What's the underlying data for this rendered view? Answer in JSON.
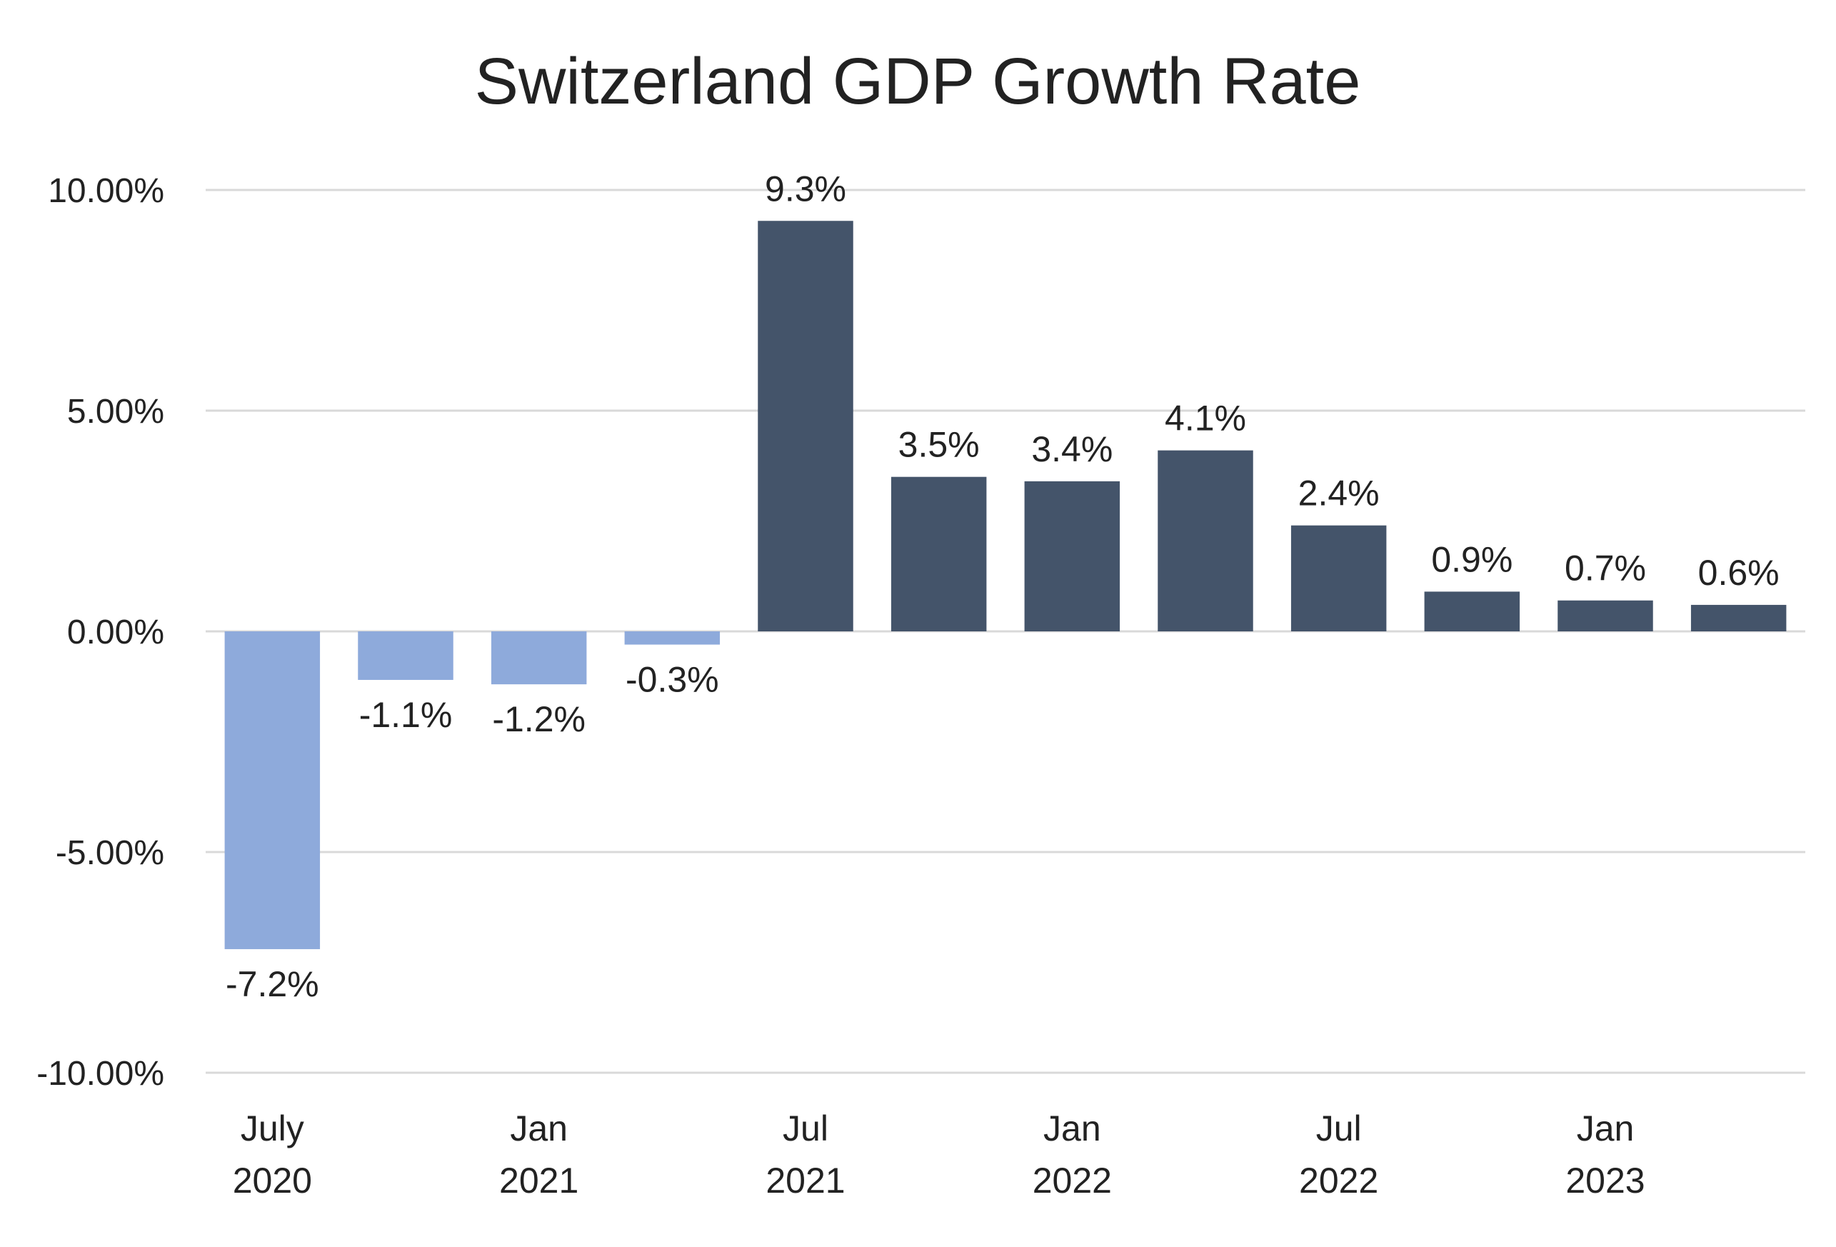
{
  "chart_data": {
    "type": "bar",
    "title": "Switzerland GDP Growth Rate",
    "xlabel": "",
    "ylabel": "",
    "ylim": [
      -10,
      10
    ],
    "y_ticks": [
      "10.00%",
      "5.00%",
      "0.00%",
      "-5.00%",
      "-10.00%"
    ],
    "y_tick_values": [
      10,
      5,
      0,
      -5,
      -10
    ],
    "grid": true,
    "legend": "none",
    "values": [
      -7.2,
      -1.1,
      -1.2,
      -0.3,
      9.3,
      3.5,
      3.4,
      4.1,
      2.4,
      0.9,
      0.7,
      0.6
    ],
    "data_labels": [
      "-7.2%",
      "-1.1%",
      "-1.2%",
      "-0.3%",
      "9.3%",
      "3.5%",
      "3.4%",
      "4.1%",
      "2.4%",
      "0.9%",
      "0.7%",
      "0.6%"
    ],
    "x_tick_labels": [
      {
        "bar_index": 0,
        "line1": "July",
        "line2": "2020"
      },
      {
        "bar_index": 2,
        "line1": "Jan",
        "line2": "2021"
      },
      {
        "bar_index": 4,
        "line1": "Jul",
        "line2": "2021"
      },
      {
        "bar_index": 6,
        "line1": "Jan",
        "line2": "2022"
      },
      {
        "bar_index": 8,
        "line1": "Jul",
        "line2": "2022"
      },
      {
        "bar_index": 10,
        "line1": "Jan",
        "line2": "2023"
      }
    ],
    "colors": {
      "negative": "#8eaadb",
      "positive": "#44546a"
    }
  }
}
